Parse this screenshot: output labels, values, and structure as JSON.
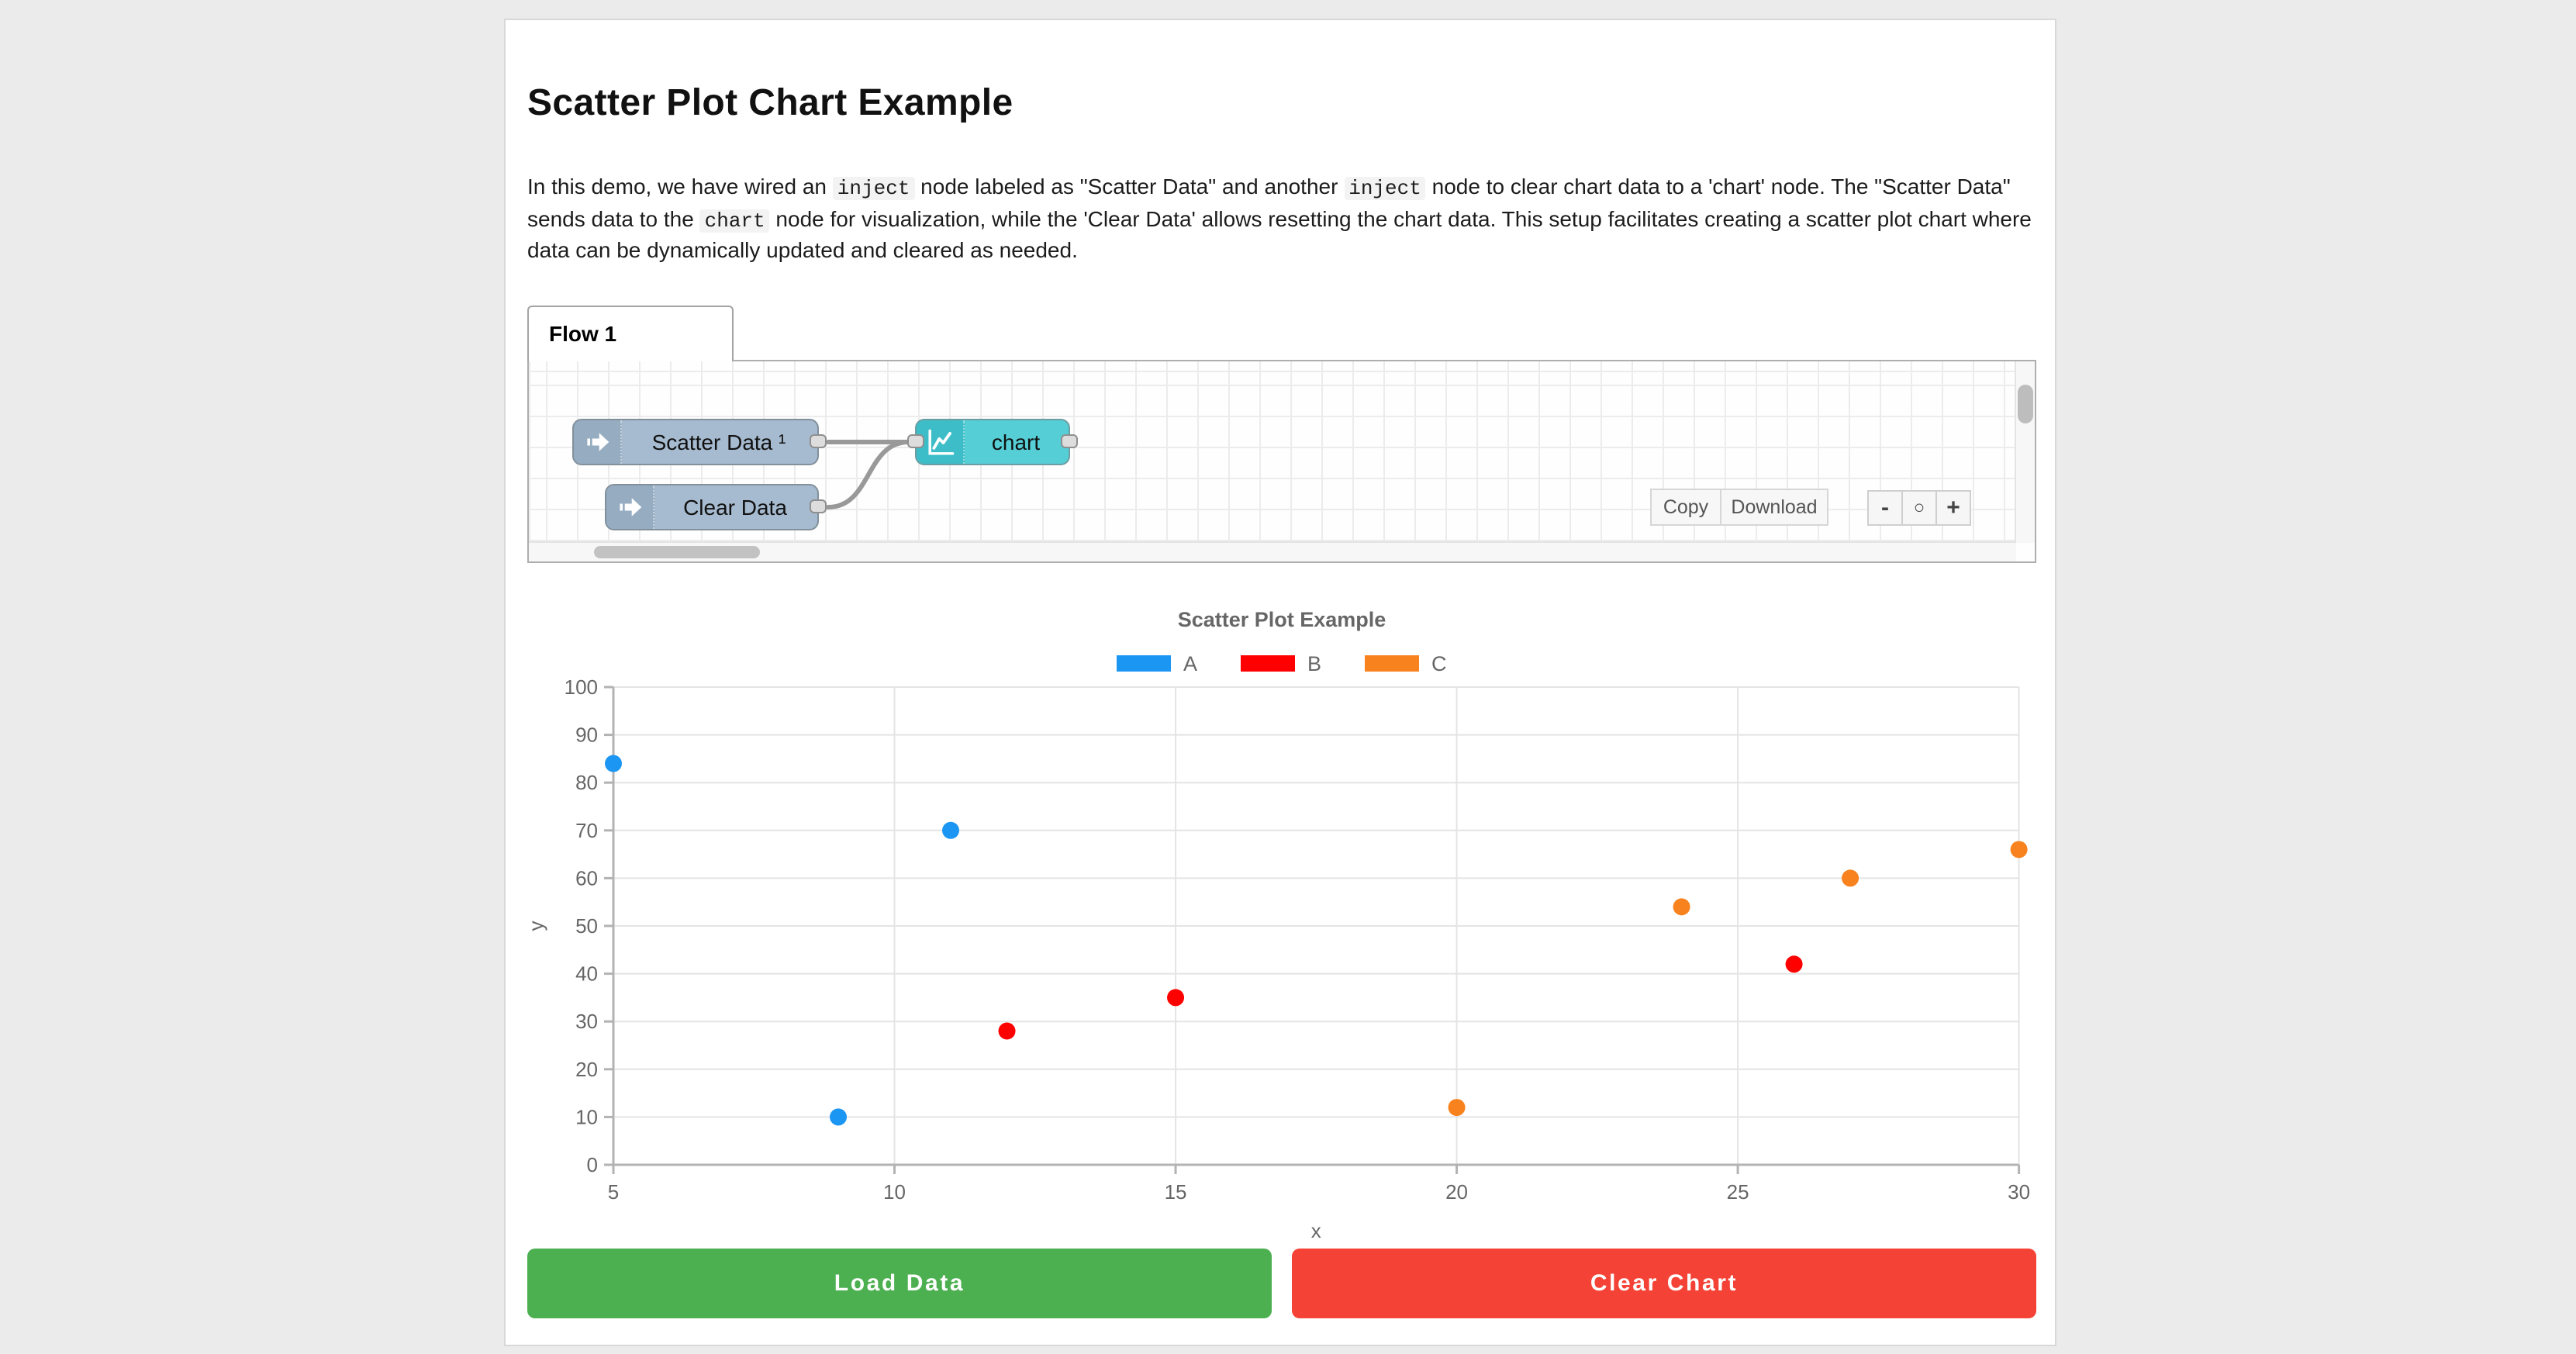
{
  "page": {
    "background": "#ebebeb",
    "card_background": "#ffffff"
  },
  "header": {
    "title": "Scatter Plot Chart Example"
  },
  "intro": {
    "segments": [
      {
        "t": "text",
        "v": "In this demo, we have wired an "
      },
      {
        "t": "code",
        "v": "inject"
      },
      {
        "t": "text",
        "v": " node labeled as \"Scatter Data\" and another "
      },
      {
        "t": "code",
        "v": "inject"
      },
      {
        "t": "text",
        "v": " node to clear chart data to a 'chart' node. The \"Scatter Data\" sends data to the "
      },
      {
        "t": "code",
        "v": "chart"
      },
      {
        "t": "text",
        "v": " node for visualization, while the 'Clear Data' allows resetting the chart data. This setup facilitates creating a scatter plot chart where data can be dynamically updated and cleared as needed."
      }
    ]
  },
  "flow": {
    "tab_label": "Flow 1",
    "nodes": [
      {
        "id": "inject-scatter",
        "label": "Scatter Data ¹",
        "type": "inject",
        "color": "#a6bbcf",
        "icon_color": "#96acc1",
        "icon": "inject-arrow-icon"
      },
      {
        "id": "node-chart",
        "label": "chart",
        "type": "chart",
        "color": "#55ced6",
        "icon_color": "#3dbdc7",
        "icon": "line-chart-icon"
      },
      {
        "id": "inject-clear",
        "label": "Clear Data",
        "type": "inject",
        "color": "#a6bbcf",
        "icon_color": "#96acc1",
        "icon": "inject-arrow-icon"
      }
    ],
    "toolbar": {
      "copy": "Copy",
      "download": "Download"
    },
    "zoom_controls": {
      "zoom_out": "-",
      "zoom_reset": "○",
      "zoom_in": "+"
    }
  },
  "chart_data": {
    "type": "scatter",
    "title": "Scatter Plot Example",
    "xlabel": "x",
    "ylabel": "y",
    "xlim": [
      5,
      30
    ],
    "ylim": [
      0,
      100
    ],
    "x_ticks": [
      5,
      10,
      15,
      20,
      25,
      30
    ],
    "y_ticks": [
      0,
      10,
      20,
      30,
      40,
      50,
      60,
      70,
      80,
      90,
      100
    ],
    "grid": true,
    "legend_position": "top",
    "text_color": "#666666",
    "series": [
      {
        "name": "A",
        "color": "#1c96f3",
        "points": [
          [
            5,
            84
          ],
          [
            9,
            10
          ],
          [
            11,
            70
          ]
        ]
      },
      {
        "name": "B",
        "color": "#ff0000",
        "points": [
          [
            12,
            28
          ],
          [
            15,
            35
          ],
          [
            26,
            42
          ]
        ]
      },
      {
        "name": "C",
        "color": "#f8821e",
        "points": [
          [
            20,
            12
          ],
          [
            24,
            54
          ],
          [
            27,
            60
          ],
          [
            30,
            66
          ]
        ]
      }
    ]
  },
  "actions": {
    "load": "Load Data",
    "clear": "Clear Chart"
  }
}
